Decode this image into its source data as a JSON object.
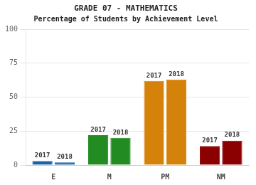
{
  "chart_data": {
    "type": "bar",
    "title": "GRADE 07 - MATHEMATICS",
    "subtitle": "Percentage of Students by Achievement Level",
    "categories": [
      "E",
      "M",
      "PM",
      "NM"
    ],
    "series": [
      {
        "name": "2017",
        "values": [
          3,
          22,
          62,
          14
        ],
        "colors": [
          "#1a5fa8",
          "#228b22",
          "#d4820a",
          "#8b0000"
        ]
      },
      {
        "name": "2018",
        "values": [
          2,
          20,
          63,
          18
        ],
        "colors": [
          "#1a5fa8",
          "#228b22",
          "#d4820a",
          "#8b0000"
        ]
      }
    ],
    "ylim": [
      0,
      100
    ],
    "yticks": [
      0,
      25,
      50,
      75,
      100
    ],
    "grid": true
  }
}
